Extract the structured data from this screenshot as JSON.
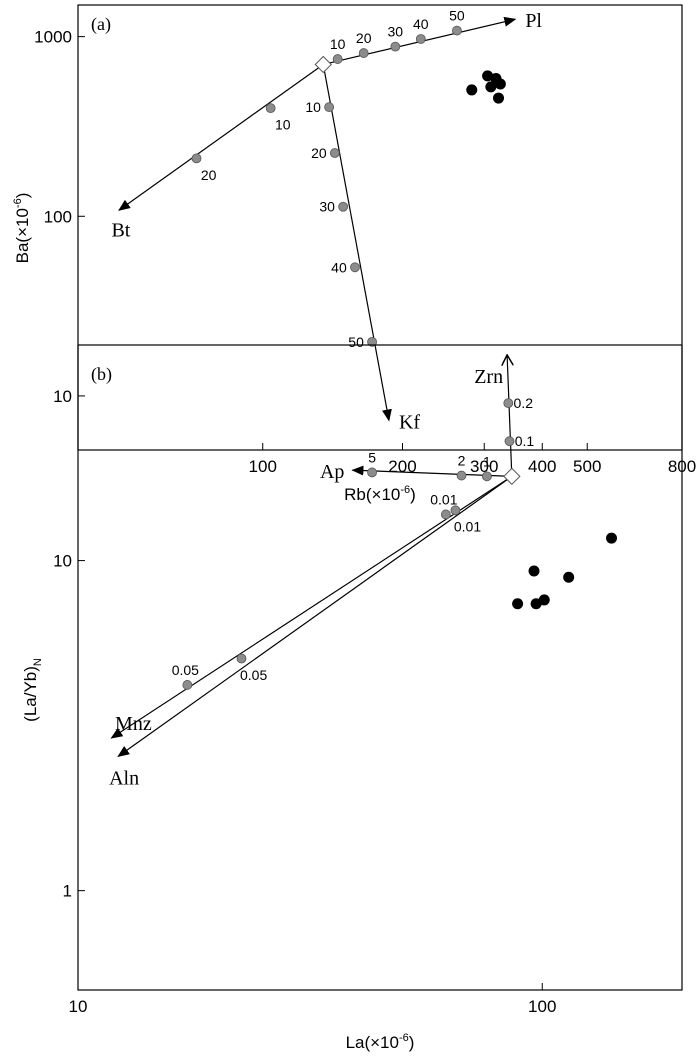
{
  "chart_data": [
    {
      "type": "scatter",
      "panel_label": "(a)",
      "xlabel": "Rb(×10",
      "xlabel_exp": "-6",
      "ylabel": "Ba(×10",
      "ylabel_exp": "-6",
      "xscale": "log",
      "yscale": "log",
      "xlim": [
        40,
        800
      ],
      "ylim": [
        5,
        1500
      ],
      "x_ticks": [
        {
          "value": 100,
          "label": "100"
        },
        {
          "value": 200,
          "label": "200"
        },
        {
          "value": 300,
          "label": "300"
        },
        {
          "value": 400,
          "label": "400"
        },
        {
          "value": 500,
          "label": "500"
        },
        {
          "value": 800,
          "label": "800"
        }
      ],
      "y_ticks": [
        {
          "value": 10,
          "label": "10"
        },
        {
          "value": 100,
          "label": "100"
        },
        {
          "value": 1000,
          "label": "1000"
        }
      ],
      "origin": {
        "x": 135,
        "y": 700
      },
      "vectors": [
        {
          "mineral": "Pl",
          "end": {
            "x": 350,
            "y": 1250
          },
          "label_pos": "right",
          "steps": [
            {
              "label": "10",
              "x": 145,
              "y": 750
            },
            {
              "label": "20",
              "x": 165,
              "y": 810
            },
            {
              "label": "30",
              "x": 193,
              "y": 880
            },
            {
              "label": "40",
              "x": 219,
              "y": 970
            },
            {
              "label": "50",
              "x": 262,
              "y": 1080
            }
          ]
        },
        {
          "mineral": "Bt",
          "end": {
            "x": 49,
            "y": 108
          },
          "label_pos": "below",
          "steps": [
            {
              "label": "10",
              "x": 104,
              "y": 400
            },
            {
              "label": "20",
              "x": 72,
              "y": 210
            }
          ]
        },
        {
          "mineral": "Kf",
          "end": {
            "x": 187,
            "y": 7.3
          },
          "label_pos": "right",
          "steps": [
            {
              "label": "10",
              "x": 139,
              "y": 405
            },
            {
              "label": "20",
              "x": 143,
              "y": 225
            },
            {
              "label": "30",
              "x": 149,
              "y": 113
            },
            {
              "label": "40",
              "x": 158,
              "y": 52
            },
            {
              "label": "50",
              "x": 172,
              "y": 20
            }
          ]
        }
      ],
      "samples": [
        {
          "x": 282,
          "y": 505
        },
        {
          "x": 305,
          "y": 605
        },
        {
          "x": 310,
          "y": 525
        },
        {
          "x": 318,
          "y": 585
        },
        {
          "x": 325,
          "y": 545
        },
        {
          "x": 322,
          "y": 455
        }
      ]
    },
    {
      "type": "scatter",
      "panel_label": "(b)",
      "xlabel": "La(×10",
      "xlabel_exp": "-6",
      "ylabel": "(La/Yb)",
      "ylabel_sub": "N",
      "xscale": "log",
      "yscale": "log",
      "xlim": [
        10,
        200
      ],
      "ylim": [
        0.5,
        45
      ],
      "x_ticks": [
        {
          "value": 10,
          "label": "10"
        },
        {
          "value": 100,
          "label": "100"
        }
      ],
      "y_ticks": [
        {
          "value": 1,
          "label": "1"
        },
        {
          "value": 10,
          "label": "10"
        }
      ],
      "origin": {
        "x": 86,
        "y": 18
      },
      "vectors": [
        {
          "mineral": "Zrn",
          "end": {
            "x": 84,
            "y": 42
          },
          "arrow": "open",
          "label_pos": "left",
          "steps": [
            {
              "label": "0.1",
              "x": 85,
              "y": 23
            },
            {
              "label": "0.2",
              "x": 84.5,
              "y": 30
            }
          ]
        },
        {
          "mineral": "Ap",
          "end": {
            "x": 39,
            "y": 18.8
          },
          "label_pos": "left",
          "steps": [
            {
              "label": "1",
              "x": 76,
              "y": 18
            },
            {
              "label": "2",
              "x": 67,
              "y": 18.1
            },
            {
              "label": "5",
              "x": 43,
              "y": 18.5
            }
          ]
        },
        {
          "mineral": "Mnz",
          "end": {
            "x": 11.8,
            "y": 2.9
          },
          "label_pos": "left",
          "steps": [
            {
              "label": "0.01",
              "x": 62,
              "y": 13.8
            },
            {
              "label": "0.05",
              "x": 17.2,
              "y": 4.2
            }
          ]
        },
        {
          "mineral": "Aln",
          "end": {
            "x": 12.2,
            "y": 2.55
          },
          "label_pos": "below",
          "steps": [
            {
              "label": "0.01",
              "x": 65,
              "y": 14.2
            },
            {
              "label": "0.05",
              "x": 22.5,
              "y": 5.05
            }
          ]
        }
      ],
      "samples": [
        {
          "x": 88.5,
          "y": 7.4
        },
        {
          "x": 96,
          "y": 9.3
        },
        {
          "x": 97,
          "y": 7.4
        },
        {
          "x": 101,
          "y": 7.6
        },
        {
          "x": 114,
          "y": 8.9
        },
        {
          "x": 141,
          "y": 11.7
        }
      ]
    }
  ]
}
